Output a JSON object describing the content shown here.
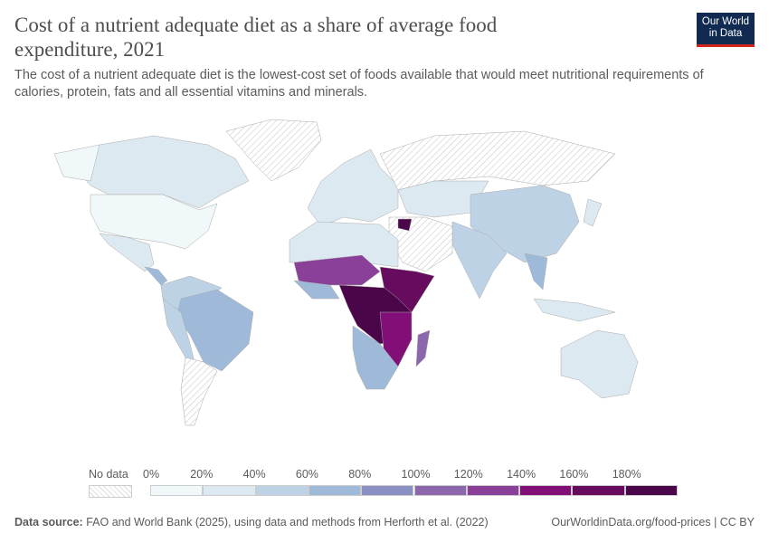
{
  "title": "Cost of a nutrient adequate diet as a share of average food expenditure, 2021",
  "subtitle": "The cost of a nutrient adequate diet is the lowest-cost set of foods available that would meet nutritional requirements of calories, protein, fats and all essential vitamins and minerals.",
  "logo": "Our World in Data",
  "legend": {
    "no_data": "No data",
    "ticks": [
      "0%",
      "20%",
      "40%",
      "60%",
      "80%",
      "100%",
      "120%",
      "140%",
      "160%",
      "180%"
    ],
    "colors": [
      "#f1f8f9",
      "#dde9f1",
      "#bed2e5",
      "#9fbad9",
      "#8a90c3",
      "#8c67ad",
      "#8a3f98",
      "#820f77",
      "#660b5d",
      "#4b0549"
    ]
  },
  "footer": {
    "source_label": "Data source:",
    "source": "FAO and World Bank (2025), using data and methods from Herforth et al. (2022)",
    "link": "OurWorldinData.org/food-prices | CC BY"
  }
}
